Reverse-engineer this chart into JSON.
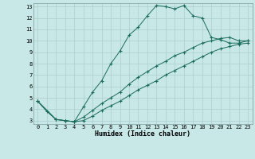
{
  "title": "",
  "xlabel": "Humidex (Indice chaleur)",
  "ylabel": "",
  "bg_color": "#c8e8e8",
  "grid_color": "#aacece",
  "line_color": "#1a6b5a",
  "xlim": [
    -0.5,
    23.5
  ],
  "ylim": [
    2.7,
    13.3
  ],
  "yticks": [
    3,
    4,
    5,
    6,
    7,
    8,
    9,
    10,
    11,
    12,
    13
  ],
  "xticks": [
    0,
    1,
    2,
    3,
    4,
    5,
    6,
    7,
    8,
    9,
    10,
    11,
    12,
    13,
    14,
    15,
    16,
    17,
    18,
    19,
    20,
    21,
    22,
    23
  ],
  "line1_x": [
    0,
    1,
    2,
    3,
    4,
    5,
    6,
    7,
    8,
    9,
    10,
    11,
    12,
    13,
    14,
    15,
    16,
    17,
    18,
    19,
    20,
    21,
    22,
    23
  ],
  "line1_y": [
    4.7,
    3.8,
    3.1,
    3.0,
    2.9,
    4.2,
    5.5,
    6.5,
    8.0,
    9.1,
    10.5,
    11.2,
    12.2,
    13.1,
    13.0,
    12.8,
    13.1,
    12.2,
    12.0,
    10.3,
    10.1,
    9.8,
    9.8,
    10.0
  ],
  "line2_x": [
    0,
    2,
    3,
    4,
    5,
    6,
    7,
    8,
    9,
    10,
    11,
    12,
    13,
    14,
    15,
    16,
    17,
    18,
    19,
    20,
    21,
    22,
    23
  ],
  "line2_y": [
    4.7,
    3.1,
    3.0,
    2.9,
    3.3,
    3.9,
    4.5,
    5.0,
    5.5,
    6.2,
    6.8,
    7.3,
    7.8,
    8.2,
    8.7,
    9.0,
    9.4,
    9.8,
    10.0,
    10.2,
    10.3,
    10.0,
    10.0
  ],
  "line3_x": [
    0,
    2,
    3,
    4,
    5,
    6,
    7,
    8,
    9,
    10,
    11,
    12,
    13,
    14,
    15,
    16,
    17,
    18,
    19,
    20,
    21,
    22,
    23
  ],
  "line3_y": [
    4.7,
    3.1,
    3.0,
    2.9,
    3.0,
    3.4,
    3.9,
    4.3,
    4.7,
    5.2,
    5.7,
    6.1,
    6.5,
    7.0,
    7.4,
    7.8,
    8.2,
    8.6,
    9.0,
    9.3,
    9.5,
    9.7,
    9.8
  ],
  "xlabel_fontsize": 6.0,
  "tick_fontsize": 5.0
}
